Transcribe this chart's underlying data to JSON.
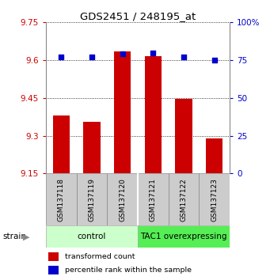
{
  "title": "GDS2451 / 248195_at",
  "samples": [
    "GSM137118",
    "GSM137119",
    "GSM137120",
    "GSM137121",
    "GSM137122",
    "GSM137123"
  ],
  "bar_values": [
    9.38,
    9.355,
    9.635,
    9.615,
    9.445,
    9.29
  ],
  "percentile_values": [
    77,
    77,
    79,
    80,
    77,
    75
  ],
  "bar_color": "#cc0000",
  "dot_color": "#0000cc",
  "ylim_left": [
    9.15,
    9.75
  ],
  "ylim_right": [
    0,
    100
  ],
  "yticks_left": [
    9.15,
    9.3,
    9.45,
    9.6,
    9.75
  ],
  "ytick_labels_left": [
    "9.15",
    "9.3",
    "9.45",
    "9.6",
    "9.75"
  ],
  "yticks_right": [
    0,
    25,
    50,
    75,
    100
  ],
  "ytick_labels_right": [
    "0",
    "25",
    "50",
    "75",
    "100%"
  ],
  "groups": [
    {
      "label": "control",
      "indices": [
        0,
        1,
        2
      ],
      "color": "#ccffcc",
      "border": "#aaddaa"
    },
    {
      "label": "TAC1 overexpressing",
      "indices": [
        3,
        4,
        5
      ],
      "color": "#55ee55",
      "border": "#33bb33"
    }
  ],
  "group_label": "strain",
  "legend_bar_label": "transformed count",
  "legend_dot_label": "percentile rank within the sample",
  "bar_width": 0.55,
  "base_value": 9.15,
  "sample_box_color": "#cccccc",
  "sample_box_edge": "#888888"
}
